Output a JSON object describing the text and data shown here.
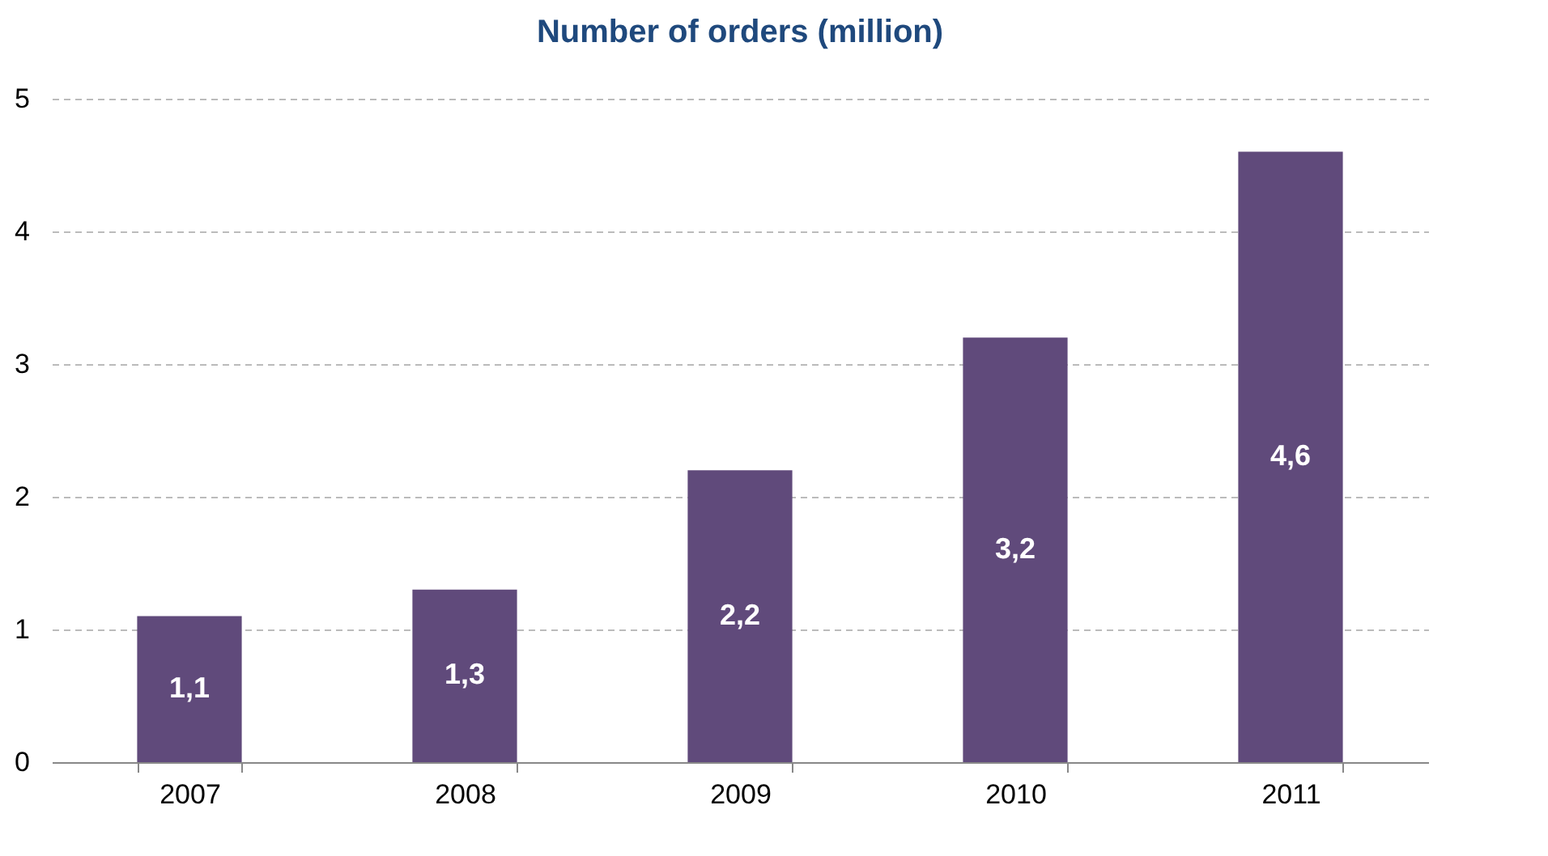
{
  "chart_data": {
    "type": "bar",
    "title": "Number of orders (million)",
    "categories": [
      "2007",
      "2008",
      "2009",
      "2010",
      "2011"
    ],
    "values": [
      1.1,
      1.3,
      2.2,
      3.2,
      4.6
    ],
    "value_labels": [
      "1,1",
      "1,3",
      "2,2",
      "3,2",
      "4,6"
    ],
    "color": "#604a7b",
    "ylim": [
      0,
      5
    ],
    "yticks": [
      0,
      1,
      2,
      3,
      4,
      5
    ],
    "grid": "y"
  }
}
